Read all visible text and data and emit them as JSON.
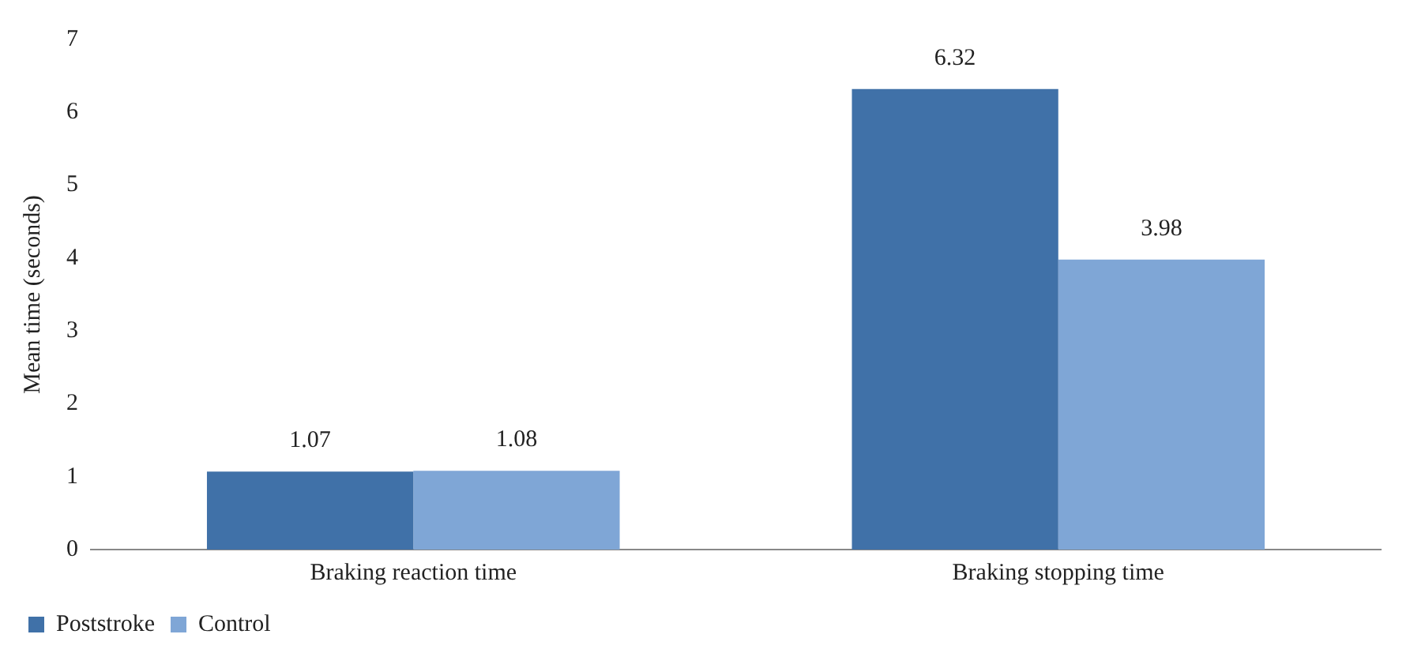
{
  "chart_data": {
    "type": "bar",
    "ylabel": "Mean time (seconds)",
    "categories": [
      "Braking reaction time",
      "Braking stopping time"
    ],
    "series": [
      {
        "name": "Poststroke",
        "color": "#4071a8",
        "values": [
          1.07,
          6.32
        ]
      },
      {
        "name": "Control",
        "color": "#7fa6d6",
        "values": [
          1.08,
          3.98
        ]
      }
    ],
    "ylim": [
      0,
      7
    ],
    "yticks": [
      0,
      1,
      2,
      3,
      4,
      5,
      6,
      7
    ],
    "grid": false,
    "legend": "bottom left",
    "data_labels": true
  }
}
